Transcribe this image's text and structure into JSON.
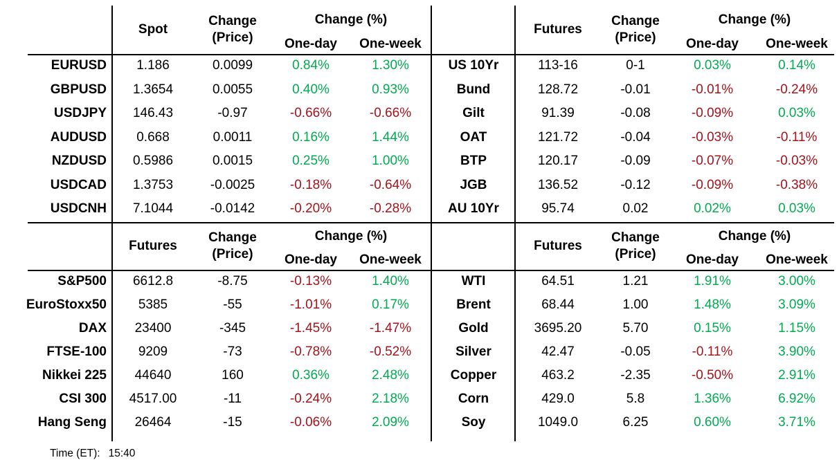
{
  "colors": {
    "positive": "#00AC50",
    "negative": "#A5131B",
    "text": "#000000",
    "line": "#000000"
  },
  "headers": {
    "change_price_line1": "Change",
    "change_price_line2": "(Price)",
    "change_pct": "Change (%)",
    "one_day": "One-day",
    "one_week": "One-week"
  },
  "footer": {
    "time_label": "Time (ET):",
    "time_value": "15:40"
  },
  "quadrants": [
    {
      "id": "fx-spot",
      "value_header": "Spot",
      "rows": [
        {
          "label": "EURUSD",
          "value": "1.186",
          "change": "0.0099",
          "one_day": "0.84%",
          "one_week": "1.30%"
        },
        {
          "label": "GBPUSD",
          "value": "1.3654",
          "change": "0.0055",
          "one_day": "0.40%",
          "one_week": "0.93%"
        },
        {
          "label": "USDJPY",
          "value": "146.43",
          "change": "-0.97",
          "one_day": "-0.66%",
          "one_week": "-0.66%"
        },
        {
          "label": "AUDUSD",
          "value": "0.668",
          "change": "0.0011",
          "one_day": "0.16%",
          "one_week": "1.44%"
        },
        {
          "label": "NZDUSD",
          "value": "0.5986",
          "change": "0.0015",
          "one_day": "0.25%",
          "one_week": "1.00%"
        },
        {
          "label": "USDCAD",
          "value": "1.3753",
          "change": "-0.0025",
          "one_day": "-0.18%",
          "one_week": "-0.64%"
        },
        {
          "label": "USDCNH",
          "value": "7.1044",
          "change": "-0.0142",
          "one_day": "-0.20%",
          "one_week": "-0.28%"
        }
      ]
    },
    {
      "id": "rates-futures",
      "value_header": "Futures",
      "rows": [
        {
          "label": "US 10Yr",
          "value": "113-16",
          "change": "0-1",
          "one_day": "0.03%",
          "one_week": "0.14%"
        },
        {
          "label": "Bund",
          "value": "128.72",
          "change": "-0.01",
          "one_day": "-0.01%",
          "one_week": "-0.24%"
        },
        {
          "label": "Gilt",
          "value": "91.39",
          "change": "-0.08",
          "one_day": "-0.09%",
          "one_week": "0.03%"
        },
        {
          "label": "OAT",
          "value": "121.72",
          "change": "-0.04",
          "one_day": "-0.03%",
          "one_week": "-0.11%"
        },
        {
          "label": "BTP",
          "value": "120.17",
          "change": "-0.09",
          "one_day": "-0.07%",
          "one_week": "-0.03%"
        },
        {
          "label": "JGB",
          "value": "136.52",
          "change": "-0.12",
          "one_day": "-0.09%",
          "one_week": "-0.38%"
        },
        {
          "label": "AU 10Yr",
          "value": "95.74",
          "change": "0.02",
          "one_day": "0.02%",
          "one_week": "0.03%"
        }
      ]
    },
    {
      "id": "equity-futures",
      "value_header": "Futures",
      "rows": [
        {
          "label": "S&P500",
          "value": "6612.8",
          "change": "-8.75",
          "one_day": "-0.13%",
          "one_week": "1.40%"
        },
        {
          "label": "EuroStoxx50",
          "value": "5385",
          "change": "-55",
          "one_day": "-1.01%",
          "one_week": "0.17%"
        },
        {
          "label": "DAX",
          "value": "23400",
          "change": "-345",
          "one_day": "-1.45%",
          "one_week": "-1.47%"
        },
        {
          "label": "FTSE-100",
          "value": "9209",
          "change": "-73",
          "one_day": "-0.78%",
          "one_week": "-0.52%"
        },
        {
          "label": "Nikkei 225",
          "value": "44640",
          "change": "160",
          "one_day": "0.36%",
          "one_week": "2.48%"
        },
        {
          "label": "CSI 300",
          "value": "4517.00",
          "change": "-11",
          "one_day": "-0.24%",
          "one_week": "2.18%"
        },
        {
          "label": "Hang Seng",
          "value": "26464",
          "change": "-15",
          "one_day": "-0.06%",
          "one_week": "2.09%"
        }
      ]
    },
    {
      "id": "commodity-futures",
      "value_header": "Futures",
      "rows": [
        {
          "label": "WTI",
          "value": "64.51",
          "change": "1.21",
          "one_day": "1.91%",
          "one_week": "3.00%"
        },
        {
          "label": "Brent",
          "value": "68.44",
          "change": "1.00",
          "one_day": "1.48%",
          "one_week": "3.09%"
        },
        {
          "label": "Gold",
          "value": "3695.20",
          "change": "5.70",
          "one_day": "0.15%",
          "one_week": "1.15%"
        },
        {
          "label": "Silver",
          "value": "42.47",
          "change": "-0.05",
          "one_day": "-0.11%",
          "one_week": "3.90%"
        },
        {
          "label": "Copper",
          "value": "463.2",
          "change": "-2.35",
          "one_day": "-0.50%",
          "one_week": "2.91%"
        },
        {
          "label": "Corn",
          "value": "429.0",
          "change": "5.8",
          "one_day": "1.36%",
          "one_week": "6.92%"
        },
        {
          "label": "Soy",
          "value": "1049.0",
          "change": "6.25",
          "one_day": "0.60%",
          "one_week": "3.71%"
        }
      ]
    }
  ]
}
